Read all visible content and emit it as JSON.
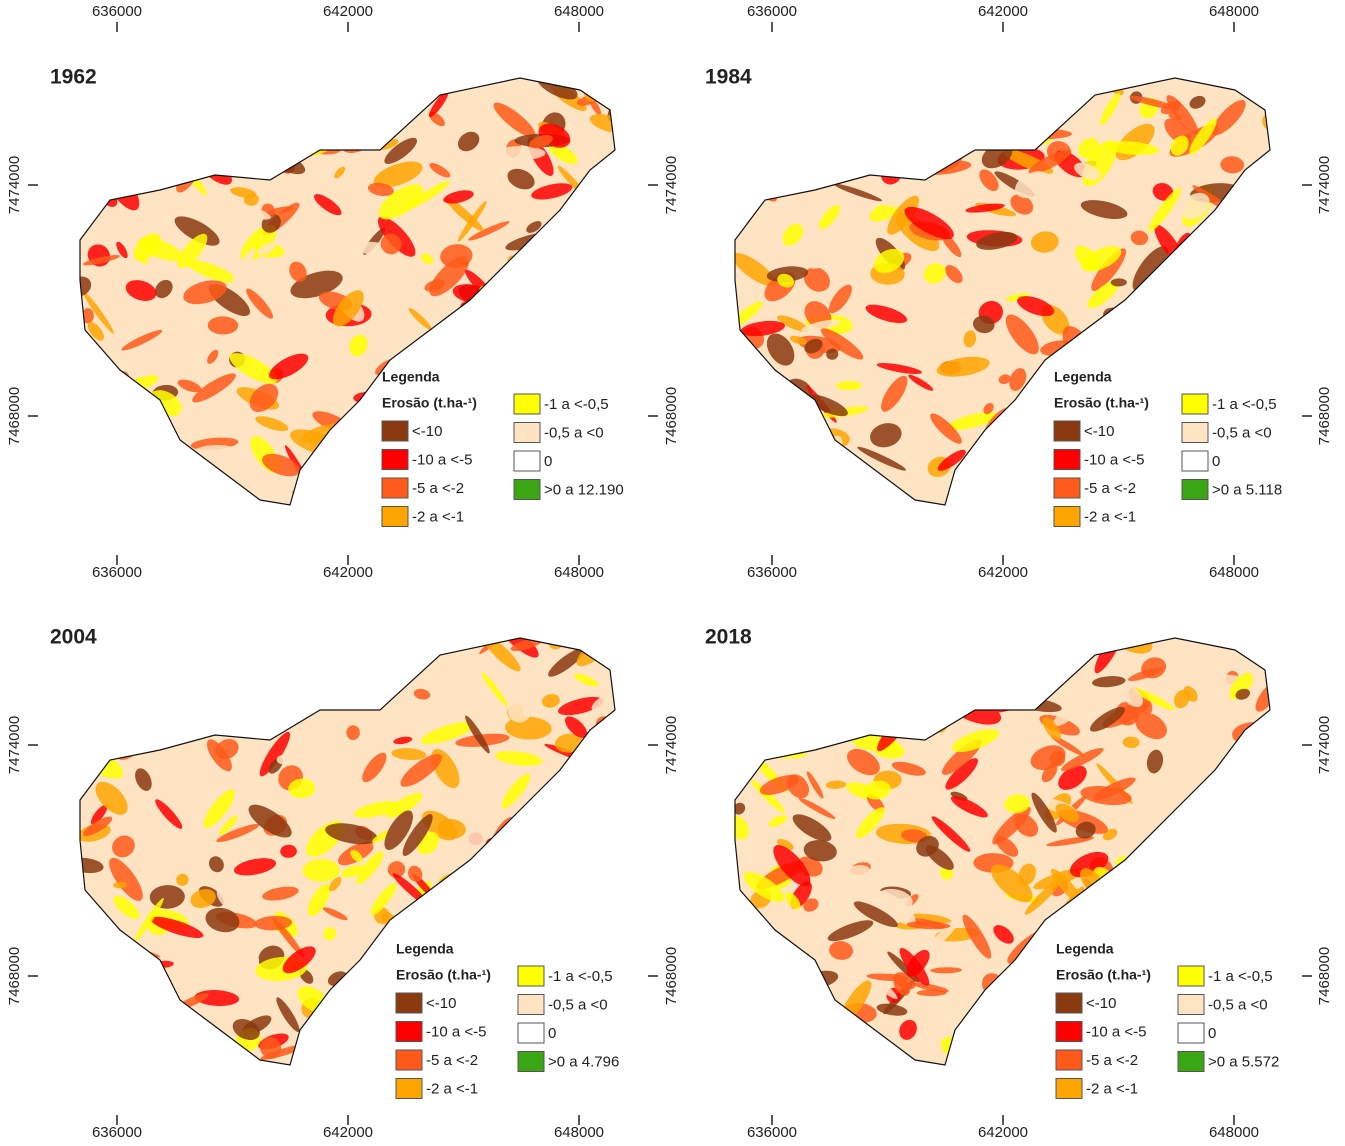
{
  "x_ticks": [
    636000,
    642000,
    648000
  ],
  "y_ticks": [
    7474000,
    7468000
  ],
  "panels": [
    {
      "title": "1962",
      "legend": {
        "title": "Legenda",
        "subtitle": "Erosão (t.ha-¹)",
        "items": [
          {
            "label": "<-10",
            "color": "#8b3a10"
          },
          {
            "label": "-10 a <-5",
            "color": "#ff0000"
          },
          {
            "label": "-5 a <-2",
            "color": "#ff5a1a"
          },
          {
            "label": "-2 a <-1",
            "color": "#ffa500"
          },
          {
            "label": "-1 a <-0,5",
            "color": "#ffff00"
          },
          {
            "label": "-0,5 a <0",
            "color": "#ffe4c4"
          },
          {
            "label": "0",
            "color": "#ffffff"
          },
          {
            "label": ">0 a 12.190",
            "color": "#3aa614"
          }
        ]
      }
    },
    {
      "title": "1984",
      "legend": {
        "title": "Legenda",
        "subtitle": "Erosão (t.ha-¹)",
        "items": [
          {
            "label": "<-10",
            "color": "#8b3a10"
          },
          {
            "label": "-10 a <-5",
            "color": "#ff0000"
          },
          {
            "label": "-5 a <-2",
            "color": "#ff5a1a"
          },
          {
            "label": "-2 a <-1",
            "color": "#ffa500"
          },
          {
            "label": "-1 a <-0,5",
            "color": "#ffff00"
          },
          {
            "label": "-0,5 a <0",
            "color": "#ffe4c4"
          },
          {
            "label": "0",
            "color": "#ffffff"
          },
          {
            "label": ">0 a 5.118",
            "color": "#3aa614"
          }
        ]
      }
    },
    {
      "title": "2004",
      "legend": {
        "title": "Legenda",
        "subtitle": "Erosão (t.ha-¹)",
        "items": [
          {
            "label": "<-10",
            "color": "#8b3a10"
          },
          {
            "label": "-10 a <-5",
            "color": "#ff0000"
          },
          {
            "label": "-5 a <-2",
            "color": "#ff5a1a"
          },
          {
            "label": "-2 a <-1",
            "color": "#ffa500"
          },
          {
            "label": "-1 a <-0,5",
            "color": "#ffff00"
          },
          {
            "label": "-0,5 a <0",
            "color": "#ffe4c4"
          },
          {
            "label": "0",
            "color": "#ffffff"
          },
          {
            "label": ">0 a 4.796",
            "color": "#3aa614"
          }
        ]
      }
    },
    {
      "title": "2018",
      "legend": {
        "title": "Legenda",
        "subtitle": "Erosão (t.ha-¹)",
        "items": [
          {
            "label": "<-10",
            "color": "#8b3a10"
          },
          {
            "label": "-10 a <-5",
            "color": "#ff0000"
          },
          {
            "label": "-5 a <-2",
            "color": "#ff5a1a"
          },
          {
            "label": "-2 a <-1",
            "color": "#ffa500"
          },
          {
            "label": "-1 a <-0,5",
            "color": "#ffff00"
          },
          {
            "label": "-0,5 a <0",
            "color": "#ffe4c4"
          },
          {
            "label": "0",
            "color": "#ffffff"
          },
          {
            "label": ">0 a 5.572",
            "color": "#3aa614"
          }
        ]
      }
    }
  ]
}
